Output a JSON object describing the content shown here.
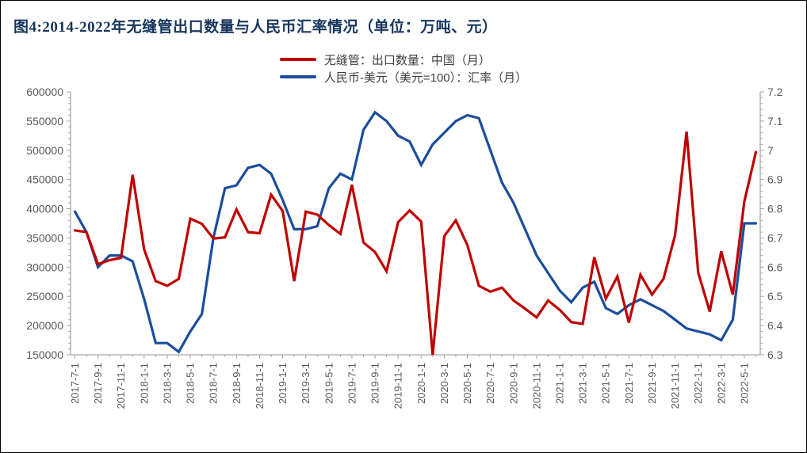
{
  "title": "图4:2014-2022年无缝管出口数量与人民币汇率情况（单位：万吨、元）",
  "legend": {
    "items": [
      {
        "label": "无缝管：出口数量：中国（月）",
        "color": "#C00000"
      },
      {
        "label": "人民币-美元（美元=100）：汇率（月）",
        "color": "#1C4D9C"
      }
    ]
  },
  "chart_data": {
    "type": "line",
    "x_start": "2017-07",
    "x_end": "2022-06",
    "frequency": "monthly",
    "x_tick_labels": [
      "2017-7-1",
      "2017-9-1",
      "2017-11-1",
      "2018-1-1",
      "2018-3-1",
      "2018-5-1",
      "2018-7-1",
      "2018-9-1",
      "2018-11-1",
      "2019-1-1",
      "2019-3-1",
      "2019-5-1",
      "2019-7-1",
      "2019-9-1",
      "2019-11-1",
      "2020-1-1",
      "2020-3-1",
      "2020-5-1",
      "2020-7-1",
      "2020-9-1",
      "2020-11-1",
      "2021-1-1",
      "2021-3-1",
      "2021-5-1",
      "2021-7-1",
      "2021-9-1",
      "2021-11-1",
      "2022-1-1",
      "2022-3-1",
      "2022-5-1"
    ],
    "left_axis": {
      "min": 150000,
      "max": 600000,
      "step": 50000,
      "minor_step": 10000,
      "tick_labels": [
        "150000",
        "200000",
        "250000",
        "300000",
        "350000",
        "400000",
        "450000",
        "500000",
        "550000",
        "600000"
      ]
    },
    "right_axis": {
      "min": 6.3,
      "max": 7.2,
      "step": 0.1,
      "minor_step": 0.02,
      "tick_labels": [
        "6.3",
        "6.4",
        "6.5",
        "6.6",
        "6.7",
        "6.8",
        "6.9",
        "7",
        "7.1",
        "7.2"
      ]
    },
    "grid": false,
    "legend_position": "top",
    "series": [
      {
        "name": "无缝管：出口数量：中国（月）",
        "axis": "left",
        "color": "#C00000",
        "values": [
          363000,
          360000,
          305000,
          312000,
          316000,
          458000,
          330000,
          276000,
          268000,
          280000,
          383000,
          374000,
          349000,
          351000,
          399000,
          360000,
          358000,
          424000,
          396000,
          276000,
          395000,
          390000,
          372000,
          357000,
          441000,
          342000,
          326000,
          293000,
          377000,
          397000,
          378000,
          150000,
          353000,
          380000,
          338000,
          268000,
          258000,
          265000,
          243000,
          229000,
          214000,
          243000,
          227000,
          206000,
          203000,
          317000,
          246000,
          284000,
          205000,
          287000,
          253000,
          280000,
          355000,
          532000,
          291000,
          224000,
          327000,
          253000,
          412000,
          497000
        ]
      },
      {
        "name": "人民币-美元（美元=100）：汇率（月）",
        "axis": "right",
        "color": "#1C4D9C",
        "values": [
          6.79,
          6.72,
          6.6,
          6.64,
          6.64,
          6.62,
          6.49,
          6.34,
          6.34,
          6.31,
          6.38,
          6.44,
          6.7,
          6.87,
          6.88,
          6.94,
          6.95,
          6.92,
          6.83,
          6.73,
          6.73,
          6.74,
          6.87,
          6.92,
          6.9,
          7.07,
          7.13,
          7.1,
          7.05,
          7.03,
          6.95,
          7.02,
          7.06,
          7.1,
          7.12,
          7.11,
          7.0,
          6.89,
          6.82,
          6.73,
          6.64,
          6.58,
          6.52,
          6.48,
          6.53,
          6.55,
          6.46,
          6.44,
          6.47,
          6.49,
          6.47,
          6.45,
          6.42,
          6.39,
          6.38,
          6.37,
          6.35,
          6.42,
          6.75,
          6.75
        ]
      }
    ],
    "style": {
      "tick_text_color": "#595959",
      "axis_line_color": "#A6A6A6",
      "line_width": 3.2
    }
  }
}
